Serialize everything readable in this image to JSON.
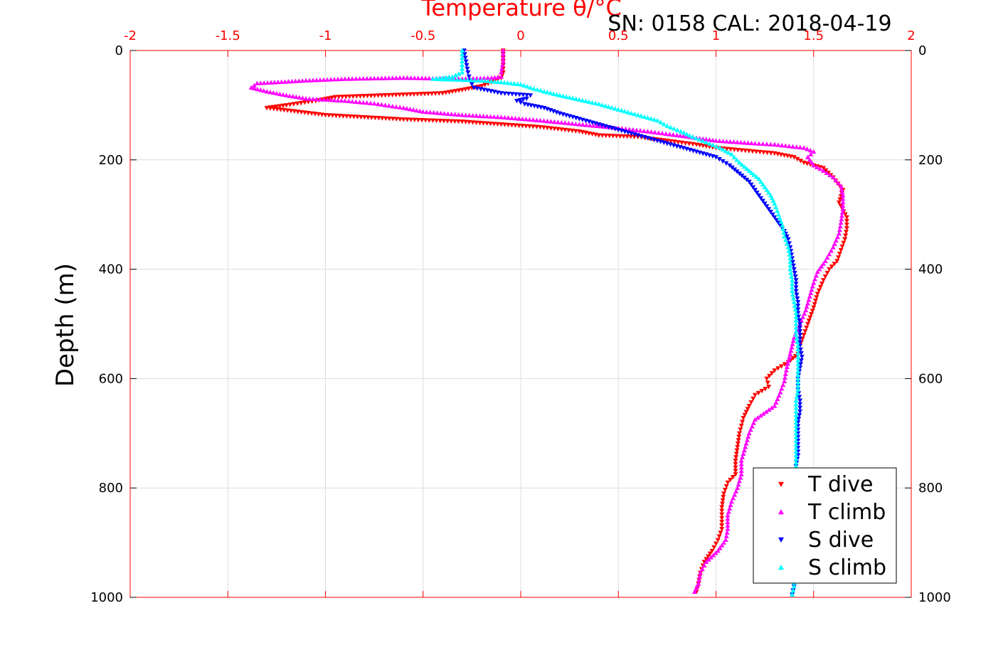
{
  "chart_data": {
    "type": "scatter",
    "title": "SN: 0158  CAL: 2018-04-19",
    "xlabel": "Temperature θ/°C",
    "ylabel": "Depth (m)",
    "xlim": [
      -2,
      2
    ],
    "ylim": [
      0,
      1000
    ],
    "y_reversed": true,
    "x_axis_position": "top",
    "x_ticks": [
      "-2",
      "-1.5",
      "-1",
      "-0.5",
      "0",
      "0.5",
      "1",
      "1.5",
      "2"
    ],
    "y_ticks": [
      "0",
      "200",
      "400",
      "600",
      "800",
      "1000"
    ],
    "grid": true,
    "legend_position": "bottom-right",
    "colors": {
      "axis": "#ff0000",
      "grid": "#dddddd",
      "text": "#000000"
    },
    "series": [
      {
        "name": "T dive",
        "color": "#ff0000",
        "marker": "triangle-down",
        "points": [
          [
            -0.09,
            0
          ],
          [
            -0.09,
            20
          ],
          [
            -0.09,
            40
          ],
          [
            -0.1,
            50
          ],
          [
            -0.15,
            58
          ],
          [
            -0.2,
            65
          ],
          [
            -0.3,
            72
          ],
          [
            -0.4,
            78
          ],
          [
            -0.95,
            85
          ],
          [
            -1.05,
            92
          ],
          [
            -1.2,
            100
          ],
          [
            -1.3,
            105
          ],
          [
            -1.0,
            118
          ],
          [
            -0.8,
            122
          ],
          [
            -0.6,
            126
          ],
          [
            -0.3,
            130
          ],
          [
            -0.1,
            135
          ],
          [
            0.1,
            140
          ],
          [
            0.3,
            148
          ],
          [
            0.4,
            155
          ],
          [
            0.6,
            158
          ],
          [
            0.75,
            165
          ],
          [
            0.9,
            172
          ],
          [
            1.0,
            178
          ],
          [
            1.15,
            183
          ],
          [
            1.3,
            188
          ],
          [
            1.4,
            195
          ],
          [
            1.45,
            205
          ],
          [
            1.55,
            215
          ],
          [
            1.6,
            232
          ],
          [
            1.65,
            255
          ],
          [
            1.63,
            278
          ],
          [
            1.67,
            305
          ],
          [
            1.67,
            325
          ],
          [
            1.66,
            345
          ],
          [
            1.64,
            365
          ],
          [
            1.62,
            385
          ],
          [
            1.58,
            400
          ],
          [
            1.55,
            420
          ],
          [
            1.52,
            445
          ],
          [
            1.5,
            470
          ],
          [
            1.47,
            500
          ],
          [
            1.45,
            520
          ],
          [
            1.43,
            540
          ],
          [
            1.42,
            555
          ],
          [
            1.37,
            570
          ],
          [
            1.3,
            585
          ],
          [
            1.26,
            600
          ],
          [
            1.27,
            615
          ],
          [
            1.2,
            630
          ],
          [
            1.17,
            650
          ],
          [
            1.14,
            672
          ],
          [
            1.12,
            700
          ],
          [
            1.11,
            725
          ],
          [
            1.1,
            750
          ],
          [
            1.1,
            775
          ],
          [
            1.06,
            790
          ],
          [
            1.04,
            810
          ],
          [
            1.03,
            835
          ],
          [
            1.03,
            855
          ],
          [
            1.03,
            875
          ],
          [
            1.01,
            895
          ],
          [
            0.98,
            915
          ],
          [
            0.94,
            935
          ],
          [
            0.92,
            955
          ],
          [
            0.91,
            975
          ],
          [
            0.9,
            990
          ]
        ]
      },
      {
        "name": "T climb",
        "color": "#ff00ff",
        "marker": "triangle-up",
        "points": [
          [
            -0.09,
            0
          ],
          [
            -0.09,
            20
          ],
          [
            -0.1,
            40
          ],
          [
            -0.1,
            48
          ],
          [
            -0.15,
            50
          ],
          [
            -0.3,
            52
          ],
          [
            -0.6,
            50
          ],
          [
            -0.9,
            52
          ],
          [
            -1.1,
            55
          ],
          [
            -1.35,
            60
          ],
          [
            -1.38,
            68
          ],
          [
            -1.3,
            75
          ],
          [
            -1.2,
            82
          ],
          [
            -1.1,
            88
          ],
          [
            -0.9,
            92
          ],
          [
            -0.75,
            97
          ],
          [
            -0.6,
            105
          ],
          [
            -0.5,
            112
          ],
          [
            -0.3,
            118
          ],
          [
            -0.1,
            122
          ],
          [
            0.1,
            128
          ],
          [
            0.3,
            135
          ],
          [
            0.5,
            142
          ],
          [
            0.65,
            148
          ],
          [
            0.8,
            155
          ],
          [
            0.9,
            160
          ],
          [
            1.0,
            165
          ],
          [
            1.2,
            170
          ],
          [
            1.3,
            172
          ],
          [
            1.45,
            178
          ],
          [
            1.5,
            185
          ],
          [
            1.47,
            195
          ],
          [
            1.5,
            210
          ],
          [
            1.55,
            220
          ],
          [
            1.6,
            232
          ],
          [
            1.64,
            248
          ],
          [
            1.65,
            265
          ],
          [
            1.65,
            290
          ],
          [
            1.64,
            315
          ],
          [
            1.63,
            335
          ],
          [
            1.6,
            360
          ],
          [
            1.56,
            385
          ],
          [
            1.52,
            405
          ],
          [
            1.5,
            425
          ],
          [
            1.48,
            450
          ],
          [
            1.46,
            475
          ],
          [
            1.43,
            500
          ],
          [
            1.4,
            525
          ],
          [
            1.38,
            555
          ],
          [
            1.36,
            585
          ],
          [
            1.35,
            605
          ],
          [
            1.33,
            625
          ],
          [
            1.3,
            650
          ],
          [
            1.2,
            675
          ],
          [
            1.17,
            700
          ],
          [
            1.15,
            725
          ],
          [
            1.13,
            750
          ],
          [
            1.13,
            775
          ],
          [
            1.11,
            800
          ],
          [
            1.08,
            825
          ],
          [
            1.06,
            850
          ],
          [
            1.06,
            875
          ],
          [
            1.05,
            895
          ],
          [
            1.01,
            915
          ],
          [
            0.95,
            935
          ],
          [
            0.92,
            955
          ],
          [
            0.91,
            975
          ],
          [
            0.89,
            990
          ]
        ]
      },
      {
        "name": "S dive",
        "color": "#0000ff",
        "marker": "triangle-down",
        "points": [
          [
            -0.29,
            0
          ],
          [
            -0.28,
            20
          ],
          [
            -0.27,
            40
          ],
          [
            -0.26,
            55
          ],
          [
            -0.24,
            68
          ],
          [
            -0.1,
            78
          ],
          [
            0.05,
            82
          ],
          [
            0.03,
            88
          ],
          [
            -0.02,
            92
          ],
          [
            0.02,
            98
          ],
          [
            0.12,
            105
          ],
          [
            0.2,
            115
          ],
          [
            0.3,
            125
          ],
          [
            0.4,
            135
          ],
          [
            0.5,
            145
          ],
          [
            0.6,
            155
          ],
          [
            0.7,
            165
          ],
          [
            0.8,
            175
          ],
          [
            0.9,
            185
          ],
          [
            1.0,
            195
          ],
          [
            1.07,
            210
          ],
          [
            1.12,
            225
          ],
          [
            1.17,
            240
          ],
          [
            1.2,
            255
          ],
          [
            1.23,
            270
          ],
          [
            1.26,
            285
          ],
          [
            1.29,
            300
          ],
          [
            1.32,
            315
          ],
          [
            1.35,
            330
          ],
          [
            1.37,
            345
          ],
          [
            1.38,
            360
          ],
          [
            1.39,
            380
          ],
          [
            1.4,
            400
          ],
          [
            1.41,
            420
          ],
          [
            1.41,
            440
          ],
          [
            1.42,
            460
          ],
          [
            1.42,
            480
          ],
          [
            1.43,
            500
          ],
          [
            1.43,
            520
          ],
          [
            1.43,
            540
          ],
          [
            1.44,
            560
          ],
          [
            1.43,
            580
          ],
          [
            1.42,
            600
          ],
          [
            1.42,
            620
          ],
          [
            1.43,
            640
          ],
          [
            1.43,
            660
          ],
          [
            1.42,
            680
          ],
          [
            1.42,
            700
          ],
          [
            1.42,
            720
          ],
          [
            1.42,
            740
          ],
          [
            1.41,
            760
          ],
          [
            1.41,
            780
          ],
          [
            1.41,
            800
          ],
          [
            1.41,
            820
          ],
          [
            1.41,
            840
          ],
          [
            1.4,
            860
          ],
          [
            1.4,
            880
          ],
          [
            1.4,
            900
          ],
          [
            1.4,
            920
          ],
          [
            1.4,
            940
          ],
          [
            1.4,
            960
          ],
          [
            1.4,
            980
          ],
          [
            1.39,
            995
          ]
        ]
      },
      {
        "name": "S climb",
        "color": "#00ffff",
        "marker": "triangle-up",
        "points": [
          [
            -0.3,
            0
          ],
          [
            -0.3,
            20
          ],
          [
            -0.3,
            40
          ],
          [
            -0.35,
            48
          ],
          [
            -0.45,
            52
          ],
          [
            -0.2,
            55
          ],
          [
            -0.1,
            58
          ],
          [
            0.0,
            62
          ],
          [
            0.05,
            68
          ],
          [
            0.12,
            75
          ],
          [
            0.2,
            82
          ],
          [
            0.3,
            90
          ],
          [
            0.4,
            98
          ],
          [
            0.5,
            108
          ],
          [
            0.6,
            118
          ],
          [
            0.7,
            128
          ],
          [
            0.75,
            138
          ],
          [
            0.82,
            148
          ],
          [
            0.88,
            158
          ],
          [
            0.95,
            168
          ],
          [
            1.02,
            178
          ],
          [
            1.08,
            190
          ],
          [
            1.12,
            205
          ],
          [
            1.17,
            220
          ],
          [
            1.22,
            235
          ],
          [
            1.25,
            250
          ],
          [
            1.28,
            265
          ],
          [
            1.3,
            280
          ],
          [
            1.32,
            300
          ],
          [
            1.34,
            320
          ],
          [
            1.35,
            340
          ],
          [
            1.37,
            360
          ],
          [
            1.38,
            380
          ],
          [
            1.38,
            400
          ],
          [
            1.39,
            420
          ],
          [
            1.39,
            440
          ],
          [
            1.4,
            460
          ],
          [
            1.41,
            480
          ],
          [
            1.41,
            500
          ],
          [
            1.41,
            520
          ],
          [
            1.42,
            540
          ],
          [
            1.42,
            560
          ],
          [
            1.42,
            580
          ],
          [
            1.42,
            600
          ],
          [
            1.42,
            620
          ],
          [
            1.41,
            640
          ],
          [
            1.41,
            660
          ],
          [
            1.41,
            680
          ],
          [
            1.41,
            700
          ],
          [
            1.41,
            720
          ],
          [
            1.41,
            740
          ],
          [
            1.41,
            760
          ],
          [
            1.4,
            780
          ],
          [
            1.4,
            800
          ],
          [
            1.4,
            820
          ],
          [
            1.4,
            840
          ],
          [
            1.4,
            860
          ],
          [
            1.4,
            880
          ],
          [
            1.4,
            900
          ],
          [
            1.4,
            920
          ],
          [
            1.4,
            940
          ],
          [
            1.4,
            960
          ],
          [
            1.4,
            980
          ],
          [
            1.39,
            995
          ]
        ]
      }
    ]
  }
}
